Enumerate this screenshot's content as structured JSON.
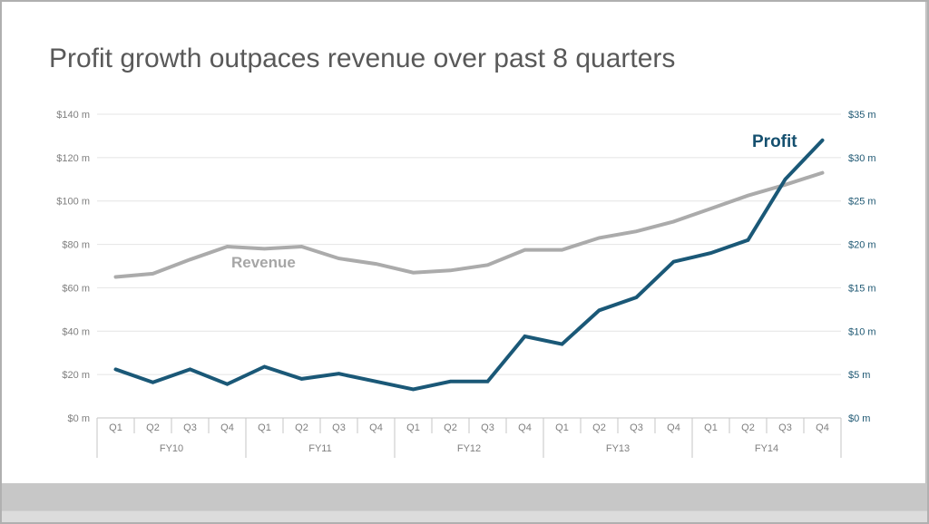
{
  "window": {
    "frame_border_color": "#b0b0b0",
    "slide_background": "#ffffff",
    "desktop_band_color": "#c7c7c7",
    "status_band_color": "#dcdcdc"
  },
  "title": "Profit growth outpaces revenue over past 8 quarters",
  "title_color": "#595959",
  "chart_data": {
    "type": "line",
    "title": "Profit growth outpaces revenue over past 8 quarters",
    "xlabel": "",
    "ylabel_left": "",
    "ylabel_right": "",
    "grid": true,
    "legend_position": "inline-labels",
    "x_year_groups": [
      "FY10",
      "FY11",
      "FY12",
      "FY13",
      "FY14"
    ],
    "categories": [
      "Q1",
      "Q2",
      "Q3",
      "Q4",
      "Q1",
      "Q2",
      "Q3",
      "Q4",
      "Q1",
      "Q2",
      "Q3",
      "Q4",
      "Q1",
      "Q2",
      "Q3",
      "Q4",
      "Q1",
      "Q2",
      "Q3",
      "Q4"
    ],
    "left_axis": {
      "min": 0,
      "max": 140,
      "tick_labels": [
        "$0 m",
        "$20 m",
        "$40 m",
        "$60 m",
        "$80 m",
        "$100 m",
        "$120 m",
        "$140 m"
      ],
      "label_color": "#7f7f7f"
    },
    "right_axis": {
      "min": 0,
      "max": 35,
      "tick_labels": [
        "$0 m",
        "$5 m",
        "$10 m",
        "$15 m",
        "$20 m",
        "$25 m",
        "$30 m",
        "$35 m"
      ],
      "label_color": "#1f5873"
    },
    "series": [
      {
        "name": "Revenue",
        "axis": "left",
        "color": "#ababab",
        "label_color": "#a6a6a6",
        "values": [
          65,
          66.5,
          73,
          79,
          78,
          79,
          73.5,
          71,
          67,
          68,
          70.5,
          77.5,
          77.5,
          83,
          86,
          90.5,
          96.5,
          102.5,
          107.5,
          113
        ]
      },
      {
        "name": "Profit",
        "axis": "right",
        "color": "#1a5877",
        "label_color": "#15506f",
        "values": [
          5.6,
          4.1,
          5.6,
          3.9,
          5.9,
          4.5,
          5.1,
          4.2,
          3.3,
          4.2,
          4.2,
          9.4,
          8.5,
          12.4,
          13.9,
          18,
          19,
          20.5,
          27.5,
          32
        ]
      }
    ],
    "axis_line_color": "#c6c6c6",
    "gridline_color": "#e4e4e4",
    "tick_font_color": "#7f7f7f"
  }
}
